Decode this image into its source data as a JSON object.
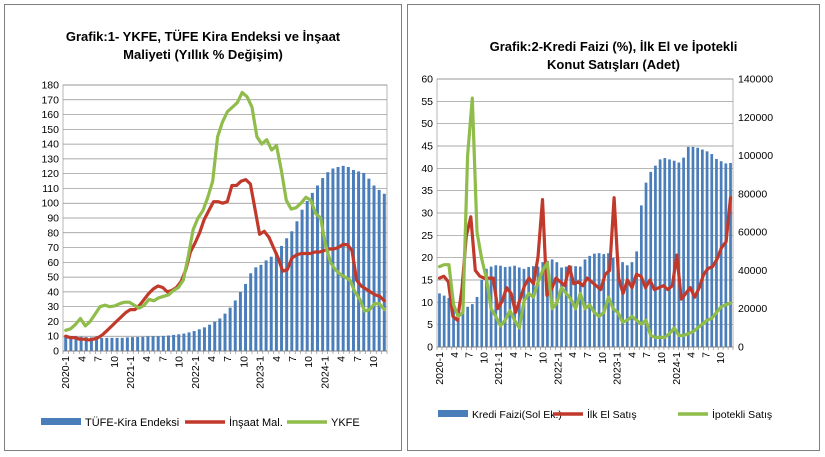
{
  "charts": [
    {
      "type": "bar+line",
      "title_line1": "Grafik:1- YKFE, TÜFE Kira Endeksi ve İnşaat",
      "title_line2": "Maliyeti (Yıllık % Değişim)",
      "ylim": [
        0,
        180
      ],
      "y_ticks": [
        "0",
        "10",
        "20",
        "30",
        "40",
        "50",
        "60",
        "70",
        "80",
        "90",
        "100",
        "110",
        "120",
        "130",
        "140",
        "150",
        "160",
        "170",
        "180"
      ],
      "x_ticks": [
        "2020-1",
        "4",
        "7",
        "10",
        "2021-1",
        "4",
        "7",
        "10",
        "2022-1",
        "4",
        "7",
        "10",
        "2023-1",
        "4",
        "7",
        "10",
        "2024-1",
        "4",
        "7",
        "10"
      ],
      "grid": true,
      "legend_position": "bottom",
      "legend": [
        "TÜFE-Kira Endeksi",
        "İnşaat Mal.",
        "YKFE"
      ],
      "colors": {
        "bar": "#4a7ebb",
        "line1": "#c0392b",
        "line2": "#8fbc4a"
      },
      "series": [
        {
          "name": "TÜFE-Kira Endeksi",
          "kind": "bar",
          "values": [
            10.5,
            10.2,
            9.9,
            9.6,
            9.4,
            9.2,
            9.0,
            8.9,
            8.9,
            8.9,
            8.9,
            8.9,
            9.2,
            9.4,
            9.5,
            9.6,
            9.8,
            9.9,
            10.0,
            10.2,
            10.5,
            10.9,
            11.3,
            11.8,
            12.6,
            13.5,
            14.7,
            16.0,
            17.8,
            19.8,
            22.0,
            25.3,
            29.3,
            34.2,
            39.9,
            45.4,
            52.6,
            56.6,
            58.3,
            61.3,
            63.8,
            66.7,
            71.1,
            76.3,
            81.0,
            87.8,
            95.6,
            101.5,
            107.0,
            112.0,
            117.0,
            121.0,
            123.5,
            124.5,
            125.3,
            124.5,
            122.5,
            121.5,
            120.5,
            116.6,
            112.0,
            109.0,
            106.4
          ]
        },
        {
          "name": "İnşaat Mal.",
          "kind": "line",
          "values": [
            10.0,
            9.0,
            9.0,
            8.0,
            8.0,
            7.5,
            8.0,
            9.0,
            11.0,
            14.0,
            17.0,
            20.0,
            23.0,
            26.0,
            28.0,
            28.0,
            31.0,
            35.0,
            39.0,
            42.0,
            44.0,
            43.0,
            40.0,
            41.0,
            43.0,
            47.0,
            55.0,
            67.0,
            73.0,
            80.0,
            89.0,
            95.0,
            101.0,
            101.0,
            100.0,
            101.0,
            112.0,
            112.0,
            115.0,
            116.0,
            113.0,
            96.0,
            79.0,
            81.0,
            77.0,
            70.0,
            63.0,
            54.0,
            55.0,
            63.0,
            65.0,
            66.0,
            66.0,
            66.0,
            67.0,
            67.0,
            68.0,
            69.0,
            69.0,
            70.0,
            72.0,
            72.0,
            68.0,
            48.0,
            44.0,
            42.0,
            40.0,
            38.0,
            37.0,
            34.0
          ]
        },
        {
          "name": "YKFE",
          "kind": "line",
          "values": [
            14.0,
            15.0,
            18.0,
            22.0,
            17.0,
            20.0,
            25.0,
            30.0,
            31.0,
            30.0,
            30.5,
            32.0,
            33.0,
            33.0,
            31.0,
            29.0,
            31.0,
            35.0,
            34.0,
            36.0,
            37.0,
            38.0,
            41.0,
            43.0,
            48.0,
            64.0,
            82.0,
            90.0,
            95.0,
            104.0,
            115.0,
            145.0,
            155.0,
            162.0,
            165.0,
            168.0,
            175.0,
            172.0,
            165.0,
            145.0,
            140.0,
            143.0,
            136.0,
            139.0,
            122.0,
            102.0,
            96.0,
            97.0,
            100.0,
            104.0,
            102.0,
            93.0,
            90.0,
            72.0,
            60.0,
            55.0,
            52.0,
            50.0,
            48.0,
            40.0,
            35.0,
            27.0,
            28.0,
            32.0,
            32.0,
            28.0
          ]
        }
      ]
    },
    {
      "type": "bar+line",
      "title_line1": "Grafik:2-Kredi Faizi (%), İlk El ve İpotekli",
      "title_line2": "Konut Satışları (Adet)",
      "ylim_left": [
        0,
        60
      ],
      "ylim_right": [
        0,
        140000
      ],
      "y_ticks_left": [
        "0",
        "5",
        "10",
        "15",
        "20",
        "25",
        "30",
        "35",
        "40",
        "45",
        "50",
        "55",
        "60"
      ],
      "y_ticks_right": [
        "0",
        "20000",
        "40000",
        "60000",
        "80000",
        "100000",
        "120000",
        "140000"
      ],
      "x_ticks": [
        "2020-1",
        "4",
        "7",
        "10",
        "2021-1",
        "4",
        "7",
        "10",
        "2022-1",
        "4",
        "7",
        "10",
        "2023-1",
        "4",
        "7",
        "10",
        "2024-1",
        "4",
        "7",
        "10"
      ],
      "grid": true,
      "legend_position": "bottom",
      "legend": [
        "Kredi Faizi(Sol Ek.)",
        "İlk El Satış",
        "İpotekli Satış"
      ],
      "colors": {
        "bar": "#4a7ebb",
        "line1": "#c0392b",
        "line2": "#8fbc4a"
      },
      "series": [
        {
          "name": "Kredi Faizi(Sol Ek.)",
          "kind": "bar",
          "axis": "left",
          "values": [
            12.0,
            11.5,
            11.0,
            8.5,
            7.8,
            8.3,
            9.0,
            9.6,
            11.2,
            15.0,
            17.5,
            18.0,
            18.3,
            18.2,
            17.9,
            18.0,
            18.2,
            17.8,
            17.5,
            17.9,
            18.1,
            18.0,
            19.0,
            19.3,
            19.6,
            19.0,
            17.8,
            18.0,
            18.2,
            18.1,
            18.0,
            19.6,
            20.4,
            20.9,
            21.0,
            20.8,
            21.0,
            20.0,
            20.2,
            19.0,
            18.3,
            19.0,
            21.4,
            31.7,
            36.8,
            39.2,
            40.6,
            42.0,
            42.3,
            42.0,
            41.7,
            41.3,
            42.4,
            44.8,
            44.8,
            44.6,
            44.2,
            43.8,
            43.2,
            42.1,
            41.6,
            41.1,
            41.2
          ]
        },
        {
          "name": "İlk El Satış",
          "kind": "line",
          "axis": "right",
          "values": [
            36000,
            37000,
            34000,
            16000,
            14000,
            30000,
            58000,
            68000,
            40000,
            37000,
            36000,
            36000,
            36000,
            20000,
            24000,
            31000,
            28000,
            18000,
            25000,
            32000,
            36000,
            33000,
            47000,
            77000,
            27000,
            30000,
            36000,
            34000,
            32000,
            42000,
            33000,
            34000,
            32000,
            36000,
            34000,
            32000,
            30000,
            38000,
            40000,
            78000,
            36000,
            28000,
            35000,
            31000,
            38000,
            37000,
            31000,
            35000,
            30000,
            31000,
            32000,
            30000,
            32000,
            48000,
            25000,
            28000,
            31000,
            26000,
            31000,
            38000,
            41000,
            42000,
            46000,
            52000,
            55000,
            78000
          ]
        },
        {
          "name": "İpotekli Satış",
          "kind": "line",
          "axis": "right",
          "values": [
            42000,
            43000,
            43000,
            22000,
            16000,
            18000,
            100000,
            130000,
            60000,
            46000,
            36000,
            20000,
            16000,
            11000,
            14000,
            19000,
            14000,
            10000,
            24000,
            28000,
            26000,
            34000,
            40000,
            44000,
            20000,
            23000,
            31000,
            28000,
            25000,
            20000,
            28000,
            20000,
            22000,
            18000,
            16000,
            18000,
            26000,
            20000,
            18000,
            13000,
            14000,
            16000,
            14000,
            12000,
            14000,
            6000,
            5000,
            5000,
            5000,
            7000,
            10000,
            6000,
            6000,
            7000,
            8000,
            10000,
            12000,
            14000,
            15000,
            18000,
            21000,
            22000,
            23000
          ]
        }
      ]
    }
  ]
}
